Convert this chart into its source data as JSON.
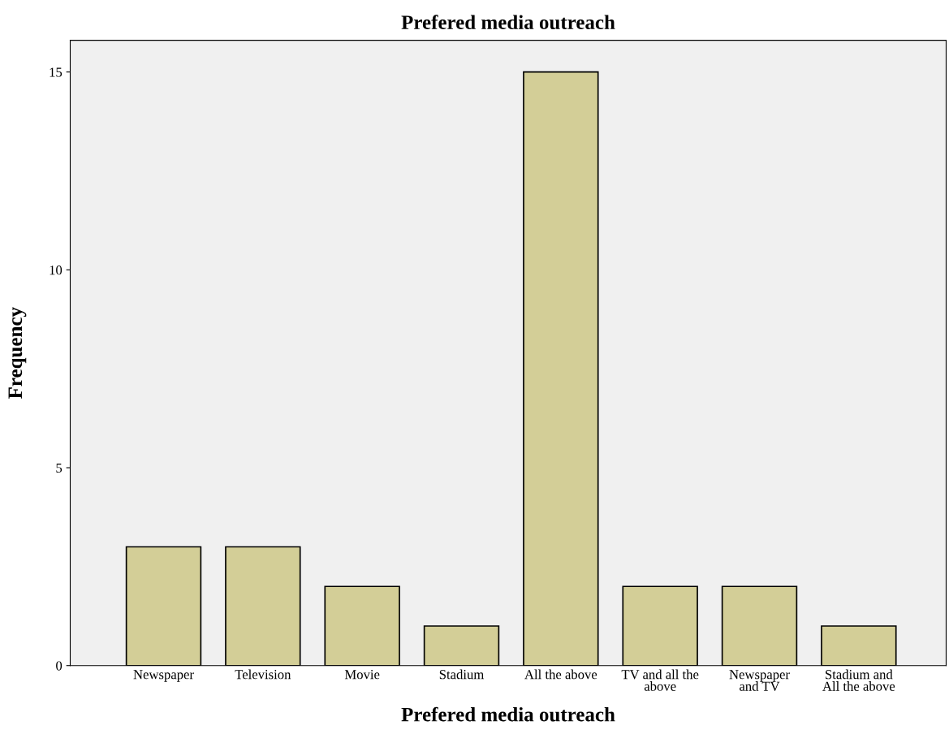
{
  "chart_data": {
    "type": "bar",
    "title": "Prefered media outreach",
    "xlabel": "Prefered media outreach",
    "ylabel": "Frequency",
    "categories": [
      "Newspaper",
      "Television",
      "Movie",
      "Stadium",
      "All the above",
      "TV and all the\nabove",
      "Newspaper\nand TV",
      "Stadium and\nAll the above"
    ],
    "values": [
      3,
      3,
      2,
      1,
      15,
      2,
      2,
      1
    ],
    "color": "#d3ce97",
    "ylim": [
      0,
      15.8
    ],
    "yticks": [
      0,
      5,
      10,
      15
    ],
    "grid": false
  }
}
